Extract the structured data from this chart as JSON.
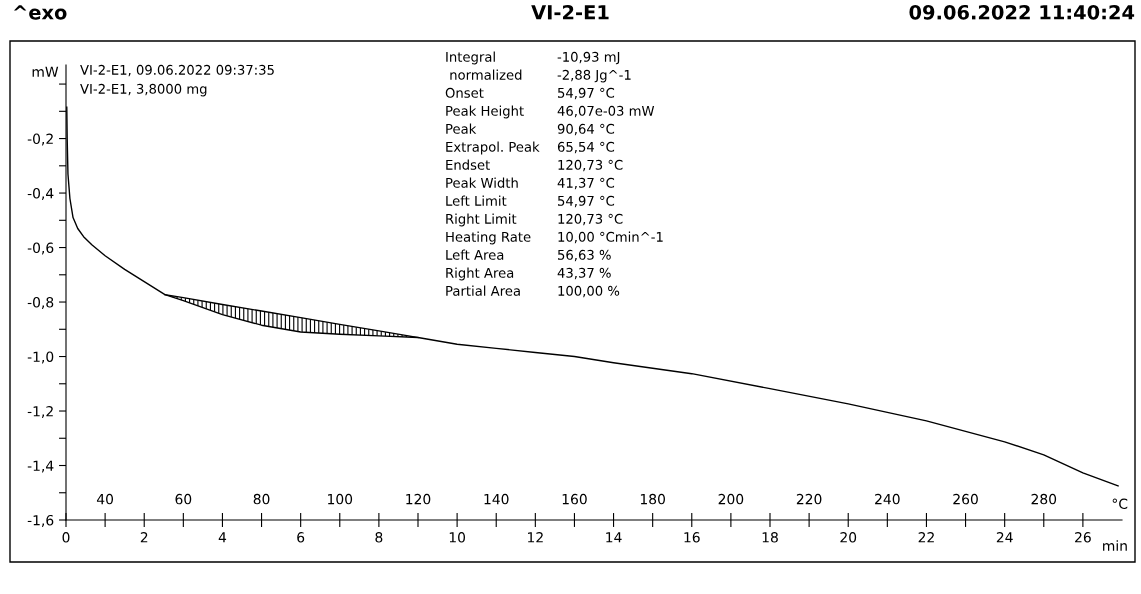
{
  "chart_data": {
    "type": "line",
    "title": "VI-2-E1",
    "xlabel": "min",
    "ylabel": "mW",
    "x2label": "°C",
    "annotations": [
      "^exo",
      "09.06.2022 11:40:24",
      "VI-2-E1, 09.06.2022 09:37:35",
      "VI-2-E1, 3,8000 mg",
      "Integral",
      "-10,93 mJ",
      " normalized",
      "-2,88 Jg^-1",
      "Onset",
      "54,97 °C",
      "Peak Height",
      "46,07e-03 mW",
      "Peak",
      "90,64 °C",
      "Extrapol. Peak",
      "65,54 °C",
      "Endset",
      "120,73 °C",
      "Peak Width",
      "41,37 °C",
      "Left Limit",
      "54,97 °C",
      "Right Limit",
      "120,73 °C",
      "Heating Rate",
      "10,00 °Cmin^-1",
      "Left Area",
      "56,63 %",
      "Right Area",
      "43,37 %",
      "Partial Area",
      "100,00 %"
    ],
    "series": [
      {
        "color": "#000000",
        "x": [
          0.02,
          0.03,
          0.05,
          0.1,
          0.18,
          0.3,
          0.45,
          0.66,
          1.0,
          1.5,
          2.0,
          2.53,
          3.0,
          4.0,
          5.0,
          6.0,
          7.0,
          8.0,
          9.0,
          10.0,
          11.0,
          12.0,
          13.0,
          14.0,
          16.0,
          18.0,
          20.0,
          22.0,
          24.0,
          25.0,
          26.0,
          26.9
        ],
        "values": [
          -0.085,
          -0.2,
          -0.33,
          -0.42,
          -0.49,
          -0.53,
          -0.56,
          -0.59,
          -0.63,
          -0.68,
          -0.725,
          -0.773,
          -0.795,
          -0.846,
          -0.885,
          -0.91,
          -0.918,
          -0.924,
          -0.93,
          -0.955,
          -0.97,
          -0.985,
          -1.0,
          -1.023,
          -1.063,
          -1.118,
          -1.174,
          -1.236,
          -1.313,
          -1.361,
          -1.427,
          -1.475
        ]
      },
      {
        "color": "#000000",
        "x": [
          2.53,
          3.0,
          4.0,
          5.0,
          6.0,
          7.0,
          8.0,
          9.0
        ],
        "values": [
          -0.773,
          -0.784,
          -0.809,
          -0.833,
          -0.857,
          -0.882,
          -0.906,
          -0.93
        ]
      }
    ],
    "xlim": [
      0,
      27
    ],
    "xticks": [
      0,
      2,
      4,
      6,
      8,
      10,
      12,
      14,
      16,
      18,
      20,
      22,
      24,
      26
    ],
    "x2lim": [
      30,
      300
    ],
    "x2ticks": [
      40,
      60,
      80,
      100,
      120,
      140,
      160,
      180,
      200,
      220,
      240,
      260,
      280
    ],
    "ylim": [
      -1.6,
      0.07
    ],
    "yticks": [
      {
        "value": 0.0,
        "label": null
      },
      {
        "value": -0.1,
        "label": null
      },
      {
        "value": -0.2,
        "label": "-0,2"
      },
      {
        "value": -0.3,
        "label": null
      },
      {
        "value": -0.4,
        "label": "-0,4"
      },
      {
        "value": -0.5,
        "label": null
      },
      {
        "value": -0.6,
        "label": "-0,6"
      },
      {
        "value": -0.7,
        "label": null
      },
      {
        "value": -0.8,
        "label": "-0,8"
      },
      {
        "value": -0.9,
        "label": null
      },
      {
        "value": -1.0,
        "label": "-1,0"
      },
      {
        "value": -1.1,
        "label": null
      },
      {
        "value": -1.2,
        "label": "-1,2"
      },
      {
        "value": -1.3,
        "label": null
      },
      {
        "value": -1.4,
        "label": "-1,4"
      },
      {
        "value": -1.5,
        "label": null
      },
      {
        "value": -1.6,
        "label": "-1,6"
      }
    ],
    "grid": false,
    "legend": false
  }
}
